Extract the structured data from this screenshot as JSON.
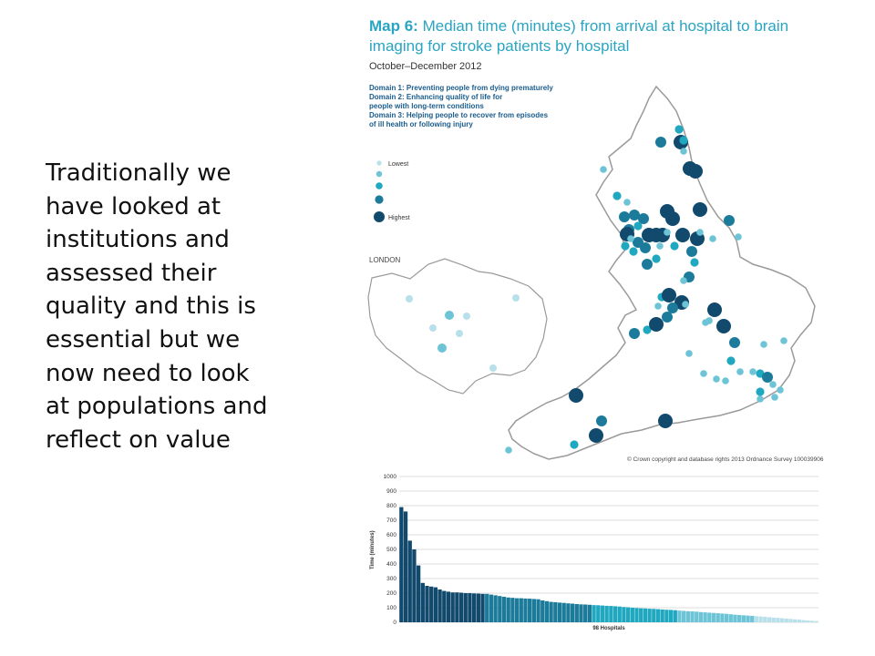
{
  "slide": {
    "lines": [
      "Traditionally we",
      "have looked at",
      "institutions and",
      "assessed their",
      "quality and this is",
      "essential but we",
      "now need to look",
      "at populations and",
      "reflect on value"
    ]
  },
  "map": {
    "title_prefix": "Map 6:",
    "title_rest": "Median time (minutes) from arrival at hospital to brain imaging for stroke patients by hospital",
    "period": "October–December 2012",
    "domains": [
      "Domain 1: Preventing people from dying prematurely",
      "Domain 2: Enhancing quality of life for",
      "people with long-term conditions",
      "Domain 3: Helping people to recover from episodes",
      "of ill health or following injury"
    ],
    "legend": {
      "lowest": "Lowest",
      "highest": "Highest"
    },
    "london_label": "LONDON",
    "copyright": "© Crown copyright and database rights 2013 Ordnance Survey 100039906"
  },
  "colors": {
    "level1": "#b8e0ea",
    "level2": "#6cc4d6",
    "level3": "#20a8c0",
    "level4": "#1c7b9a",
    "level5": "#124a6e",
    "title": "#2aa4c2",
    "outline": "#9a9a9a"
  },
  "chart_data": {
    "type": "bar",
    "title": "",
    "xlabel": "98 Hospitals",
    "ylabel": "Time (minutes)",
    "ylim": [
      0,
      1000
    ],
    "yticks": [
      0,
      100,
      200,
      300,
      400,
      500,
      600,
      700,
      800,
      900,
      1000
    ],
    "grid": true,
    "values": [
      790,
      760,
      560,
      500,
      390,
      270,
      250,
      245,
      240,
      225,
      215,
      210,
      205,
      205,
      203,
      200,
      200,
      198,
      197,
      195,
      195,
      190,
      185,
      180,
      175,
      170,
      168,
      165,
      165,
      163,
      162,
      160,
      158,
      150,
      145,
      140,
      138,
      135,
      133,
      130,
      128,
      125,
      123,
      122,
      120,
      118,
      117,
      115,
      113,
      112,
      110,
      108,
      105,
      103,
      100,
      98,
      96,
      95,
      93,
      92,
      90,
      88,
      86,
      85,
      83,
      80,
      78,
      76,
      75,
      73,
      70,
      68,
      66,
      64,
      62,
      60,
      58,
      55,
      52,
      50,
      48,
      46,
      44,
      42,
      40,
      38,
      35,
      32,
      30,
      28,
      25,
      23,
      20,
      18,
      15,
      12,
      10,
      8
    ]
  }
}
